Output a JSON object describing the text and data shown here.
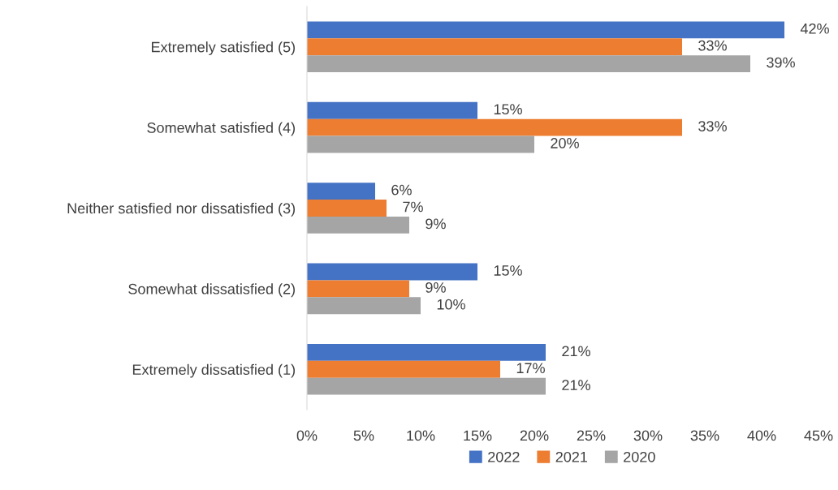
{
  "chart_data": {
    "type": "bar",
    "orientation": "horizontal",
    "categories": [
      "Extremely satisfied (5)",
      "Somewhat satisfied (4)",
      "Neither satisfied nor dissatisfied (3)",
      "Somewhat dissatisfied (2)",
      "Extremely dissatisfied (1)"
    ],
    "series": [
      {
        "name": "2022",
        "color": "#4472c4",
        "values": [
          42,
          15,
          6,
          15,
          21
        ],
        "value_labels": [
          "42%",
          "15%",
          "6%",
          "15%",
          "21%"
        ]
      },
      {
        "name": "2021",
        "color": "#ed7d31",
        "values": [
          33,
          33,
          7,
          9,
          17
        ],
        "value_labels": [
          "33%",
          "33%",
          "7%",
          "9%",
          "17%"
        ]
      },
      {
        "name": "2020",
        "color": "#a5a5a5",
        "values": [
          39,
          20,
          9,
          10,
          21
        ],
        "value_labels": [
          "39%",
          "20%",
          "9%",
          "10%",
          "21%"
        ]
      }
    ],
    "xlim": [
      0,
      45
    ],
    "xticks": [
      {
        "value": 0,
        "label": "0%"
      },
      {
        "value": 5,
        "label": "5%"
      },
      {
        "value": 10,
        "label": "10%"
      },
      {
        "value": 15,
        "label": "15%"
      },
      {
        "value": 20,
        "label": "20%"
      },
      {
        "value": 25,
        "label": "25%"
      },
      {
        "value": 30,
        "label": "30%"
      },
      {
        "value": 35,
        "label": "35%"
      },
      {
        "value": 40,
        "label": "40%"
      },
      {
        "value": 45,
        "label": "45%"
      }
    ],
    "grid": false,
    "legend": "bottom"
  }
}
